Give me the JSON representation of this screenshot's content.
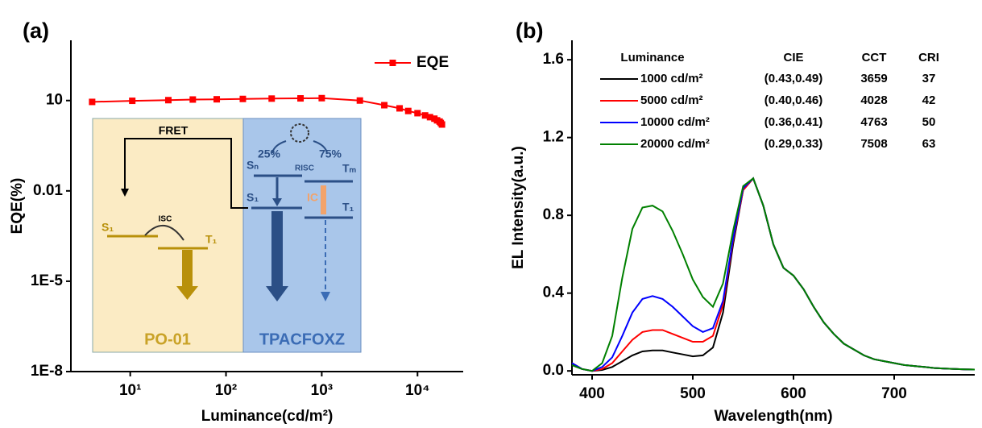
{
  "chart_data": [
    {
      "type": "line",
      "panel": "(a)",
      "x_label": "Luminance(cd/m²)",
      "y_label": "EQE(%)",
      "xscale": "log",
      "yscale": "log",
      "xlim": [
        2.4,
        30000
      ],
      "ylim": [
        1e-08,
        1000
      ],
      "xticks": [
        {
          "value": 10,
          "label": "10¹"
        },
        {
          "value": 100,
          "label": "10²"
        },
        {
          "value": 1000,
          "label": "10³"
        },
        {
          "value": 10000,
          "label": "10⁴"
        }
      ],
      "yticks": [
        {
          "value": 1e-08,
          "label": "1E-8"
        },
        {
          "value": 1e-05,
          "label": "1E-5"
        },
        0.01,
        10
      ],
      "x": [
        4,
        10.5,
        25,
        45,
        80,
        150,
        300,
        600,
        1000,
        2500,
        4500,
        6500,
        8000,
        10000,
        12000,
        13500,
        15000,
        16000,
        17000,
        17500,
        18000
      ],
      "series": [
        {
          "name": "EQE",
          "color": "#ff0000",
          "marker": "square",
          "values": [
            9,
            9.8,
            10.3,
            10.8,
            11,
            11.3,
            11.6,
            11.8,
            12,
            10,
            7,
            5.5,
            4.5,
            3.8,
            3.2,
            2.8,
            2.5,
            2.2,
            2.0,
            1.8,
            1.6
          ]
        }
      ],
      "legend": "top-right",
      "inset": {
        "fret": "FRET",
        "isc": "ISC",
        "risc": "RISC",
        "ic": "IC",
        "singlet_share": "25%",
        "triplet_share": "75%",
        "donor_s1": "S₁",
        "donor_t1": "T₁",
        "host_sn": "Sₙ",
        "host_tm": "Tₘ",
        "host_s1": "S₁",
        "host_t1": "T₁",
        "donor": "PO-01",
        "host": "TPACFOXZ"
      }
    },
    {
      "type": "line",
      "panel": "(b)",
      "x_label": "Wavelength(nm)",
      "y_label": "EL Intensity(a.u.)",
      "xlim": [
        380,
        780
      ],
      "ylim": [
        -0.02,
        1.7
      ],
      "xticks": [
        400,
        500,
        600,
        700
      ],
      "yticks": [
        {
          "value": 0,
          "label": "0.0"
        },
        0.4,
        0.8,
        1.2,
        1.6
      ],
      "x": [
        380,
        390,
        400,
        410,
        420,
        430,
        440,
        450,
        460,
        470,
        480,
        490,
        500,
        510,
        520,
        530,
        540,
        550,
        560,
        570,
        580,
        590,
        600,
        610,
        620,
        630,
        640,
        650,
        660,
        670,
        680,
        690,
        700,
        710,
        720,
        730,
        740,
        750,
        760,
        770,
        780
      ],
      "series": [
        {
          "name": "1000 cd/m²",
          "color": "#000000",
          "values": [
            0.03,
            0.01,
            0.0,
            0.005,
            0.02,
            0.05,
            0.08,
            0.1,
            0.105,
            0.105,
            0.095,
            0.085,
            0.075,
            0.08,
            0.12,
            0.3,
            0.65,
            0.93,
            0.99,
            0.85,
            0.65,
            0.53,
            0.49,
            0.42,
            0.33,
            0.25,
            0.19,
            0.14,
            0.11,
            0.08,
            0.06,
            0.05,
            0.04,
            0.03,
            0.025,
            0.02,
            0.015,
            0.012,
            0.01,
            0.008,
            0.007
          ]
        },
        {
          "name": "5000 cd/m²",
          "color": "#ff0000",
          "values": [
            0.04,
            0.01,
            0.0,
            0.01,
            0.04,
            0.1,
            0.16,
            0.2,
            0.21,
            0.21,
            0.19,
            0.17,
            0.15,
            0.15,
            0.18,
            0.34,
            0.67,
            0.93,
            0.99,
            0.85,
            0.65,
            0.53,
            0.49,
            0.42,
            0.33,
            0.25,
            0.19,
            0.14,
            0.11,
            0.08,
            0.06,
            0.05,
            0.04,
            0.03,
            0.025,
            0.02,
            0.015,
            0.012,
            0.01,
            0.008,
            0.007
          ]
        },
        {
          "name": "10000 cd/m²",
          "color": "#0000ff",
          "values": [
            0.04,
            0.01,
            0.0,
            0.02,
            0.07,
            0.18,
            0.3,
            0.37,
            0.385,
            0.37,
            0.33,
            0.28,
            0.23,
            0.2,
            0.22,
            0.36,
            0.68,
            0.94,
            0.99,
            0.85,
            0.65,
            0.53,
            0.49,
            0.42,
            0.33,
            0.25,
            0.19,
            0.14,
            0.11,
            0.08,
            0.06,
            0.05,
            0.04,
            0.03,
            0.025,
            0.02,
            0.015,
            0.012,
            0.01,
            0.008,
            0.007
          ]
        },
        {
          "name": "20000 cd/m²",
          "color": "#008000",
          "values": [
            0.03,
            0.01,
            0.0,
            0.04,
            0.18,
            0.48,
            0.73,
            0.84,
            0.85,
            0.82,
            0.72,
            0.6,
            0.47,
            0.38,
            0.33,
            0.45,
            0.72,
            0.95,
            0.99,
            0.85,
            0.65,
            0.53,
            0.49,
            0.42,
            0.33,
            0.25,
            0.19,
            0.14,
            0.11,
            0.08,
            0.06,
            0.05,
            0.04,
            0.03,
            0.025,
            0.02,
            0.015,
            0.012,
            0.01,
            0.008,
            0.007
          ]
        }
      ],
      "table": {
        "header": [
          "Luminance",
          "CIE",
          "CCT",
          "CRI"
        ],
        "rows": [
          [
            "(0.43,0.49)",
            3659,
            37
          ],
          [
            "(0.40,0.46)",
            4028,
            42
          ],
          [
            "(0.36,0.41)",
            4763,
            50
          ],
          [
            "(0.29,0.33)",
            7508,
            63
          ]
        ]
      }
    }
  ]
}
